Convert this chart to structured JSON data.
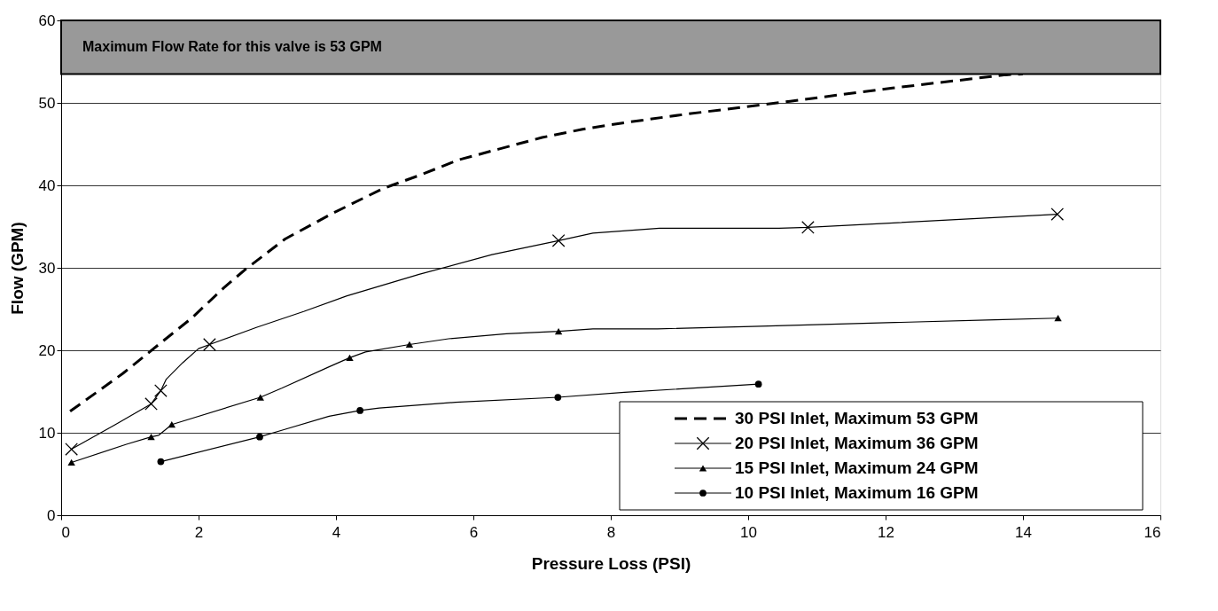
{
  "chart_data": {
    "type": "line",
    "xlabel": "Pressure Loss (PSI)",
    "ylabel": "Flow (GPM)",
    "xlim": [
      0,
      16
    ],
    "xticks": [
      0,
      2,
      4,
      6,
      8,
      10,
      12,
      14,
      16
    ],
    "ylim": [
      0,
      60
    ],
    "yticks": [
      0,
      10,
      20,
      30,
      40,
      50,
      60
    ],
    "grid": "y",
    "legend": "bottom right",
    "bands": [
      {
        "axis": "y",
        "from": 53.5,
        "to": 60,
        "label": "Maximum Flow Rate for this valve  is 53 GPM",
        "color": "#999999"
      }
    ],
    "series": [
      {
        "name": "30 PSI Inlet, Maximum 53 GPM",
        "color": "#000000",
        "type": "line",
        "line_style": "dashed",
        "marker": "none",
        "x": [
          0.13,
          0.9,
          1.42,
          1.9,
          2.37,
          2.68,
          3.26,
          3.95,
          4.68,
          5.21,
          5.79,
          6.37,
          7.0,
          7.59,
          8.2,
          9.07,
          10.61,
          12.1,
          13.75,
          14.0
        ],
        "values": [
          12.6,
          17.2,
          20.7,
          23.9,
          27.6,
          29.8,
          33.5,
          36.6,
          39.6,
          41.2,
          43.1,
          44.4,
          45.8,
          46.8,
          47.6,
          48.6,
          50.2,
          51.8,
          53.4,
          53.5
        ]
      },
      {
        "name": "20 PSI Inlet, Maximum 36 GPM",
        "color": "#000000",
        "type": "line",
        "line_style": "solid",
        "marker": "none",
        "x": [
          0.15,
          0.79,
          1.31,
          1.45,
          1.53,
          1.77,
          2.0,
          2.16,
          2.85,
          3.53,
          4.16,
          5.21,
          6.27,
          7.24,
          7.74,
          8.71,
          10.45,
          10.87,
          14.5
        ],
        "values": [
          8.0,
          11.0,
          13.5,
          15.1,
          16.5,
          18.5,
          20.2,
          20.7,
          22.8,
          24.7,
          26.6,
          29.2,
          31.6,
          33.3,
          34.2,
          34.8,
          34.8,
          34.9,
          36.5
        ]
      },
      {
        "color": "#000000",
        "type": "scatter",
        "marker": "cross",
        "x": [
          0.15,
          1.31,
          1.45,
          2.16,
          7.24,
          10.87,
          14.5
        ],
        "values": [
          8.0,
          13.5,
          15.1,
          20.7,
          33.3,
          34.9,
          36.5
        ]
      },
      {
        "name": "15 PSI Inlet, Maximum 24 GPM",
        "color": "#000000",
        "type": "line",
        "line_style": "solid",
        "marker": "none",
        "x": [
          0.15,
          0.95,
          1.31,
          1.42,
          1.61,
          2.9,
          3.21,
          3.9,
          4.2,
          4.43,
          5.07,
          5.64,
          6.48,
          7.24,
          7.74,
          8.68,
          10.06,
          13.59,
          14.51
        ],
        "values": [
          6.4,
          8.6,
          9.5,
          9.7,
          11.0,
          14.3,
          15.4,
          18.0,
          19.1,
          19.8,
          20.7,
          21.4,
          22.0,
          22.3,
          22.6,
          22.6,
          22.9,
          23.7,
          23.9
        ]
      },
      {
        "color": "#000000",
        "type": "scatter",
        "marker": "triangle",
        "x": [
          0.15,
          1.31,
          1.61,
          2.9,
          4.2,
          5.07,
          7.24,
          14.51
        ],
        "values": [
          6.4,
          9.5,
          11.0,
          14.3,
          19.1,
          20.7,
          22.3,
          23.9
        ]
      },
      {
        "name": "10 PSI Inlet, Maximum 16 GPM",
        "color": "#000000",
        "type": "line",
        "line_style": "solid",
        "marker": "none",
        "x": [
          1.45,
          2.89,
          3.21,
          3.9,
          4.35,
          4.63,
          5.74,
          7.23,
          8.2,
          10.15
        ],
        "values": [
          6.5,
          9.5,
          10.3,
          12.0,
          12.7,
          13.0,
          13.7,
          14.3,
          14.9,
          15.9
        ]
      },
      {
        "color": "#000000",
        "type": "scatter",
        "marker": "circle",
        "x": [
          1.45,
          2.89,
          4.35,
          7.23,
          10.15
        ],
        "values": [
          6.5,
          9.5,
          12.7,
          14.3,
          15.9
        ]
      }
    ]
  }
}
